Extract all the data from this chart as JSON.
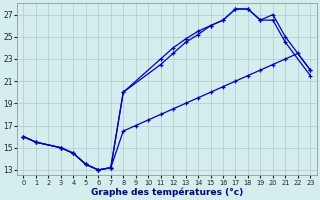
{
  "xlabel": "Graphe des températures (°c)",
  "background_color": "#d4eeed",
  "line_color": "#0000cc",
  "grid_color": "#aacccc",
  "xlim": [
    -0.5,
    23.5
  ],
  "ylim": [
    12.5,
    28.0
  ],
  "yticks": [
    13,
    15,
    17,
    19,
    21,
    23,
    25,
    27
  ],
  "xticks": [
    0,
    1,
    2,
    3,
    4,
    5,
    6,
    7,
    8,
    9,
    10,
    11,
    12,
    13,
    14,
    15,
    16,
    17,
    18,
    19,
    20,
    21,
    22,
    23
  ],
  "line1_x": [
    0,
    1,
    3,
    4,
    5,
    6,
    7,
    8,
    11,
    12,
    13,
    14,
    15,
    16,
    17,
    18,
    19,
    20,
    21,
    23
  ],
  "line1_y": [
    16.0,
    15.5,
    15.0,
    14.5,
    13.5,
    13.0,
    13.2,
    20.0,
    22.5,
    23.5,
    24.5,
    25.2,
    26.0,
    26.5,
    27.5,
    27.5,
    26.5,
    27.0,
    25.0,
    22.0
  ],
  "line2_x": [
    0,
    1,
    3,
    4,
    5,
    6,
    7,
    8,
    11,
    12,
    13,
    14,
    15,
    16,
    17,
    18,
    19,
    20,
    21,
    23
  ],
  "line2_y": [
    16.0,
    15.5,
    15.0,
    14.5,
    13.5,
    13.0,
    13.2,
    20.0,
    23.0,
    24.0,
    24.8,
    25.5,
    26.0,
    26.5,
    27.5,
    27.5,
    26.5,
    26.5,
    24.5,
    21.5
  ],
  "line3_x": [
    0,
    1,
    3,
    4,
    5,
    6,
    7,
    8,
    9,
    10,
    11,
    12,
    13,
    14,
    15,
    16,
    17,
    18,
    19,
    20,
    21,
    22,
    23
  ],
  "line3_y": [
    16.0,
    15.5,
    15.0,
    14.5,
    13.5,
    13.0,
    13.2,
    16.5,
    17.0,
    17.5,
    18.0,
    18.5,
    19.0,
    19.5,
    20.0,
    20.5,
    21.0,
    21.5,
    22.0,
    22.5,
    23.0,
    23.5,
    22.0
  ]
}
